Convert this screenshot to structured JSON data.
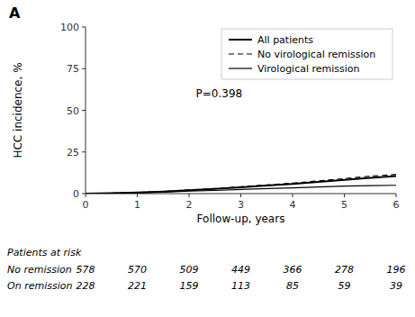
{
  "chart_data": {
    "type": "line",
    "title": "A",
    "x_label": "Follow-up, years",
    "y_label": "HCC incidence, %",
    "annotations": [
      "P=0.398"
    ],
    "x": [
      0,
      0.5,
      1.0,
      1.5,
      2.0,
      2.5,
      3.0,
      3.5,
      4.0,
      4.5,
      5.0,
      5.5,
      6.0
    ],
    "series": [
      {
        "name": "All patients",
        "color": "#000000",
        "line_style": "solid",
        "values": [
          0,
          0.3,
          0.7,
          1.2,
          2.0,
          2.8,
          3.8,
          4.8,
          5.8,
          7.0,
          8.2,
          9.5,
          10.5
        ]
      },
      {
        "name": "No virological remission",
        "color": "#000000",
        "line_style": "dashed",
        "values": [
          0,
          0.3,
          0.7,
          1.3,
          2.2,
          3.0,
          4.1,
          5.2,
          6.3,
          7.6,
          9.0,
          10.5,
          11.5
        ]
      },
      {
        "name": "Virological remission",
        "color": "#000000",
        "line_style": "solid",
        "values": [
          0,
          0.2,
          0.5,
          0.8,
          1.5,
          1.9,
          2.5,
          3.0,
          3.5,
          4.0,
          4.5,
          4.8,
          5.0
        ]
      }
    ],
    "xlim": [
      0,
      6
    ],
    "ylim": [
      0,
      100
    ],
    "xticks": [
      0,
      1,
      2,
      3,
      4,
      5,
      6
    ],
    "yticks": [
      0,
      25,
      50,
      75,
      100
    ],
    "grid": false,
    "legend": "upper right",
    "risk_table": {
      "title": "Patients at risk",
      "rows": [
        {
          "name": "No remission",
          "values": [
            578,
            570,
            509,
            449,
            366,
            278,
            196
          ]
        },
        {
          "name": "On remission",
          "values": [
            228,
            221,
            159,
            113,
            85,
            59,
            39
          ]
        }
      ]
    }
  }
}
